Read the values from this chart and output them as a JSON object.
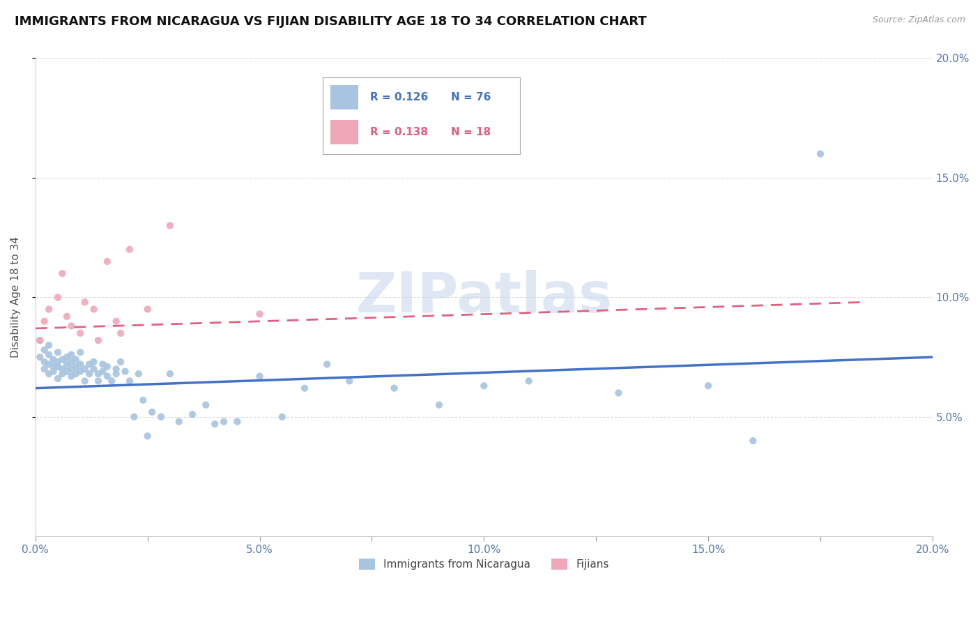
{
  "title": "IMMIGRANTS FROM NICARAGUA VS FIJIAN DISABILITY AGE 18 TO 34 CORRELATION CHART",
  "source_text": "Source: ZipAtlas.com",
  "ylabel": "Disability Age 18 to 34",
  "xlabel": "",
  "xlim": [
    0.0,
    0.2
  ],
  "ylim": [
    0.0,
    0.2
  ],
  "xtick_labels": [
    "0.0%",
    "",
    "5.0%",
    "",
    "10.0%",
    "",
    "15.0%",
    "",
    "20.0%"
  ],
  "xtick_vals": [
    0.0,
    0.025,
    0.05,
    0.075,
    0.1,
    0.125,
    0.15,
    0.175,
    0.2
  ],
  "ytick_labels": [
    "5.0%",
    "10.0%",
    "15.0%",
    "20.0%"
  ],
  "ytick_vals": [
    0.05,
    0.1,
    0.15,
    0.2
  ],
  "blue_color": "#a8c4e0",
  "pink_color": "#f0a8b8",
  "blue_line_color": "#4472c4",
  "pink_line_color": "#e06080",
  "legend_R_blue": "R = 0.126",
  "legend_N_blue": "N = 76",
  "legend_R_pink": "R = 0.138",
  "legend_N_pink": "N = 18",
  "legend_label_blue": "Immigrants from Nicaragua",
  "legend_label_pink": "Fijians",
  "watermark": "ZIPatlas",
  "blue_scatter_x": [
    0.001,
    0.001,
    0.002,
    0.002,
    0.002,
    0.003,
    0.003,
    0.003,
    0.003,
    0.004,
    0.004,
    0.004,
    0.005,
    0.005,
    0.005,
    0.005,
    0.006,
    0.006,
    0.006,
    0.007,
    0.007,
    0.007,
    0.008,
    0.008,
    0.008,
    0.008,
    0.009,
    0.009,
    0.009,
    0.01,
    0.01,
    0.01,
    0.011,
    0.011,
    0.012,
    0.012,
    0.013,
    0.013,
    0.014,
    0.014,
    0.015,
    0.015,
    0.016,
    0.016,
    0.017,
    0.018,
    0.018,
    0.019,
    0.02,
    0.021,
    0.022,
    0.023,
    0.024,
    0.025,
    0.026,
    0.028,
    0.03,
    0.032,
    0.035,
    0.038,
    0.04,
    0.042,
    0.045,
    0.05,
    0.055,
    0.06,
    0.065,
    0.07,
    0.08,
    0.09,
    0.1,
    0.11,
    0.13,
    0.15,
    0.16,
    0.175
  ],
  "blue_scatter_y": [
    0.075,
    0.082,
    0.078,
    0.07,
    0.073,
    0.072,
    0.076,
    0.068,
    0.08,
    0.071,
    0.074,
    0.069,
    0.073,
    0.077,
    0.071,
    0.066,
    0.074,
    0.07,
    0.068,
    0.072,
    0.069,
    0.075,
    0.073,
    0.07,
    0.067,
    0.076,
    0.071,
    0.068,
    0.074,
    0.072,
    0.069,
    0.077,
    0.07,
    0.065,
    0.072,
    0.068,
    0.07,
    0.073,
    0.068,
    0.065,
    0.072,
    0.069,
    0.067,
    0.071,
    0.065,
    0.07,
    0.068,
    0.073,
    0.069,
    0.065,
    0.05,
    0.068,
    0.057,
    0.042,
    0.052,
    0.05,
    0.068,
    0.048,
    0.051,
    0.055,
    0.047,
    0.048,
    0.048,
    0.067,
    0.05,
    0.062,
    0.072,
    0.065,
    0.062,
    0.055,
    0.063,
    0.065,
    0.06,
    0.063,
    0.04,
    0.16
  ],
  "pink_scatter_x": [
    0.001,
    0.002,
    0.003,
    0.005,
    0.006,
    0.007,
    0.008,
    0.01,
    0.011,
    0.013,
    0.014,
    0.016,
    0.018,
    0.019,
    0.021,
    0.025,
    0.03,
    0.05
  ],
  "pink_scatter_y": [
    0.082,
    0.09,
    0.095,
    0.1,
    0.11,
    0.092,
    0.088,
    0.085,
    0.098,
    0.095,
    0.082,
    0.115,
    0.09,
    0.085,
    0.12,
    0.095,
    0.13,
    0.093
  ],
  "blue_trend_x_start": 0.0,
  "blue_trend_x_end": 0.2,
  "blue_trend_y_start": 0.062,
  "blue_trend_y_end": 0.075,
  "pink_trend_x_start": 0.0,
  "pink_trend_x_end": 0.185,
  "pink_trend_y_start": 0.087,
  "pink_trend_y_end": 0.098,
  "background_color": "#ffffff",
  "grid_color": "#dddddd",
  "title_fontsize": 13,
  "axis_label_fontsize": 11,
  "tick_fontsize": 11,
  "legend_fontsize": 11
}
